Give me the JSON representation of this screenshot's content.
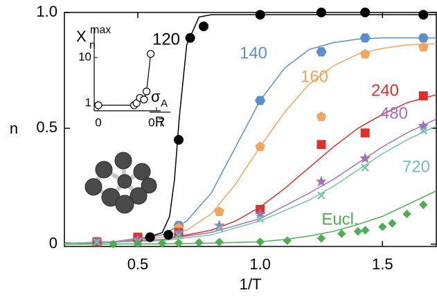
{
  "chart_data": {
    "type": "scatter",
    "xlabel": "1/T",
    "ylabel": "n",
    "xlim": [
      0.2,
      1.72
    ],
    "ylim": [
      -0.01,
      1.0
    ],
    "xticks": [
      0.5,
      {
        "value": 1.0,
        "label": "1.0"
      },
      1.5
    ],
    "yticks": [
      0,
      0.5,
      {
        "value": 1.0,
        "label": "1.0"
      }
    ],
    "series": [
      {
        "name": "120",
        "color": "#000000",
        "marker": "circle",
        "x": [
          0.55,
          0.625,
          0.667,
          0.714,
          0.769,
          1.0,
          1.25,
          1.429,
          1.667
        ],
        "values": [
          0.03,
          0.04,
          0.45,
          0.89,
          0.94,
          0.99,
          1.0,
          1.0,
          0.99
        ],
        "line_x": [
          0.2,
          0.3,
          0.4,
          0.5,
          0.6,
          0.63,
          0.65,
          0.67,
          0.7,
          0.75,
          0.8,
          1.0,
          1.72
        ],
        "line_values": [
          0.004,
          0.005,
          0.008,
          0.015,
          0.05,
          0.12,
          0.28,
          0.55,
          0.86,
          0.98,
          0.99,
          0.99,
          0.99
        ]
      },
      {
        "name": "140",
        "color": "#5b8fcb",
        "marker": "hexagon",
        "x": [
          0.333,
          0.5,
          0.667,
          1.0,
          1.25,
          1.429,
          1.667
        ],
        "values": [
          0.01,
          0.02,
          0.08,
          0.62,
          0.83,
          0.89,
          0.89
        ],
        "line_x": [
          0.2,
          0.4,
          0.6,
          0.7,
          0.8,
          0.9,
          1.0,
          1.1,
          1.2,
          1.3,
          1.4,
          1.5,
          1.72
        ],
        "line_values": [
          0.002,
          0.01,
          0.04,
          0.1,
          0.22,
          0.42,
          0.62,
          0.76,
          0.84,
          0.87,
          0.885,
          0.89,
          0.89
        ]
      },
      {
        "name": "160",
        "color": "#f0a65e",
        "marker": "pentagon",
        "x": [
          0.333,
          0.5,
          0.667,
          0.833,
          1.0,
          1.25,
          1.429,
          1.667
        ],
        "values": [
          0.01,
          0.03,
          0.07,
          0.14,
          0.42,
          0.55,
          0.82,
          0.85
        ],
        "line_x": [
          0.2,
          0.4,
          0.6,
          0.7,
          0.8,
          0.9,
          1.0,
          1.1,
          1.2,
          1.3,
          1.4,
          1.5,
          1.6,
          1.72
        ],
        "line_values": [
          0.002,
          0.01,
          0.03,
          0.06,
          0.13,
          0.26,
          0.42,
          0.57,
          0.69,
          0.77,
          0.82,
          0.845,
          0.86,
          0.865
        ]
      },
      {
        "name": "240",
        "color": "#e0302a",
        "marker": "square",
        "x": [
          0.333,
          0.5,
          0.667,
          1.0,
          1.25,
          1.429,
          1.667
        ],
        "values": [
          0.01,
          0.03,
          0.05,
          0.15,
          0.43,
          0.48,
          0.64
        ],
        "line_x": [
          0.2,
          0.6,
          0.8,
          0.9,
          1.0,
          1.1,
          1.2,
          1.3,
          1.4,
          1.5,
          1.6,
          1.72
        ],
        "line_values": [
          0.002,
          0.02,
          0.06,
          0.1,
          0.16,
          0.24,
          0.33,
          0.42,
          0.5,
          0.56,
          0.61,
          0.645
        ]
      },
      {
        "name": "480",
        "color": "#a070c0",
        "marker": "star",
        "x": [
          0.333,
          0.5,
          0.667,
          0.833,
          1.0,
          1.25,
          1.429,
          1.667
        ],
        "values": [
          0.01,
          0.02,
          0.05,
          0.08,
          0.13,
          0.27,
          0.37,
          0.51
        ],
        "line_x": [
          0.2,
          0.6,
          0.8,
          1.0,
          1.2,
          1.3,
          1.4,
          1.5,
          1.6,
          1.72
        ],
        "line_values": [
          0.002,
          0.02,
          0.05,
          0.11,
          0.22,
          0.28,
          0.35,
          0.42,
          0.48,
          0.54
        ]
      },
      {
        "name": "720",
        "color": "#6fc4a6",
        "marker": "x",
        "x": [
          0.333,
          0.5,
          0.667,
          0.833,
          1.0,
          1.25,
          1.429,
          1.667
        ],
        "values": [
          0.01,
          0.01,
          0.04,
          0.07,
          0.11,
          0.21,
          0.33,
          0.49
        ],
        "line_x": [
          0.2,
          0.6,
          0.8,
          1.0,
          1.2,
          1.3,
          1.4,
          1.5,
          1.6,
          1.72
        ],
        "line_values": [
          0.002,
          0.015,
          0.04,
          0.1,
          0.19,
          0.25,
          0.32,
          0.39,
          0.45,
          0.51
        ]
      },
      {
        "name": "Eucl.",
        "color": "#4caf50",
        "marker": "diamond",
        "x": [
          0.4,
          0.5,
          0.6,
          0.667,
          0.75,
          0.833,
          1.0,
          1.111,
          1.25,
          1.333,
          1.4,
          1.43,
          1.5,
          1.54,
          1.6,
          1.667
        ],
        "values": [
          0,
          0.002,
          0.004,
          0.005,
          0.007,
          0.009,
          0.01,
          0.015,
          0.025,
          0.045,
          0.055,
          0.06,
          0.075,
          0.09,
          0.13,
          0.17
        ],
        "line_x": [
          0.2,
          0.6,
          0.8,
          1.0,
          1.1,
          1.2,
          1.3,
          1.4,
          1.5,
          1.6,
          1.72
        ],
        "line_values": [
          0,
          0.001,
          0.004,
          0.01,
          0.02,
          0.035,
          0.055,
          0.085,
          0.12,
          0.17,
          0.23
        ]
      }
    ],
    "inset": {
      "type": "line",
      "log_y": true,
      "ylabel": {
        "main": "X",
        "sub": "n",
        "sup": "max"
      },
      "xlabel": {
        "main": "σ",
        "sub": "A",
        "den": "R"
      },
      "xlim": [
        -0.05,
        0.75
      ],
      "ylim": [
        0.68,
        45
      ],
      "xticks": [
        0,
        0.7
      ],
      "yticks": [
        1,
        10
      ],
      "x": [
        0,
        0.43,
        0.46,
        0.5,
        0.55,
        0.58,
        0.63
      ],
      "values": [
        0.9,
        0.9,
        1.0,
        1.3,
        1.2,
        1.8,
        12
      ]
    }
  }
}
